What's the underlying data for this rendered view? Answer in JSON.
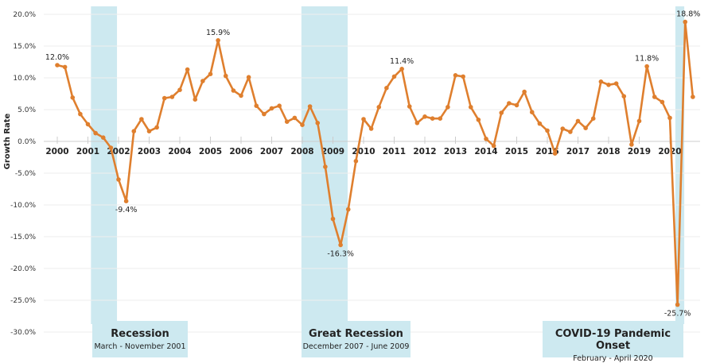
{
  "chart_data": {
    "type": "line",
    "title": "",
    "xlabel": "",
    "ylabel": "Growth Rate",
    "ylim": [
      -30,
      20
    ],
    "y_ticks": [
      "20.0%",
      "15.0%",
      "10.0%",
      "5.0%",
      "0.0%",
      "-5.0%",
      "-10.0%",
      "-15.0%",
      "-20.0%",
      "-25.0%",
      "-30.0%"
    ],
    "y_tick_values": [
      20,
      15,
      10,
      5,
      0,
      -5,
      -10,
      -15,
      -20,
      -25,
      -30
    ],
    "x_ticks": [
      "2000",
      "2001",
      "2002",
      "2003",
      "2004",
      "2005",
      "2006",
      "2007",
      "2008",
      "2009",
      "2010",
      "2011",
      "2012",
      "2013",
      "2014",
      "2015",
      "2016",
      "2017",
      "2018",
      "2019",
      "2020"
    ],
    "x_start_year": 2000,
    "frequency": "quarterly",
    "grid": true,
    "line_color": "#df7f2e",
    "shade_color": "#cde9f0",
    "values": [
      12.0,
      11.7,
      6.9,
      4.3,
      2.7,
      1.3,
      0.6,
      -1.0,
      -6.0,
      -9.4,
      1.6,
      3.5,
      1.6,
      2.2,
      6.8,
      7.0,
      8.1,
      11.3,
      6.6,
      9.5,
      10.6,
      15.9,
      10.3,
      8.0,
      7.2,
      10.1,
      5.6,
      4.3,
      5.2,
      5.6,
      3.1,
      3.7,
      2.6,
      5.5,
      2.9,
      -4.0,
      -12.2,
      -16.3,
      -10.7,
      -3.1,
      3.5,
      2.0,
      5.4,
      8.4,
      10.2,
      11.4,
      5.5,
      2.9,
      3.9,
      3.6,
      3.6,
      5.4,
      10.4,
      10.2,
      5.4,
      3.4,
      0.4,
      -0.7,
      4.5,
      6.0,
      5.7,
      7.8,
      4.6,
      2.8,
      1.7,
      -1.9,
      2.0,
      1.5,
      3.2,
      2.1,
      3.6,
      9.4,
      8.9,
      9.1,
      7.1,
      -0.5,
      3.2,
      11.8,
      7.0,
      6.2,
      3.7,
      -25.7,
      18.8,
      7.0
    ],
    "annotations": [
      {
        "index": 0,
        "text": "12.0%",
        "pos": "above"
      },
      {
        "index": 9,
        "text": "-9.4%",
        "pos": "below"
      },
      {
        "index": 21,
        "text": "15.9%",
        "pos": "above"
      },
      {
        "index": 37,
        "text": "-16.3%",
        "pos": "below"
      },
      {
        "index": 45,
        "text": "11.4%",
        "pos": "above"
      },
      {
        "index": 77,
        "text": "11.8%",
        "pos": "above"
      },
      {
        "index": 81,
        "text": "-25.7%",
        "pos": "below"
      },
      {
        "index": 82,
        "text": "18.8%",
        "pos": "above"
      }
    ],
    "recessions": [
      {
        "title": "Recession",
        "subtitle": "March - November 2001",
        "start": 2001.1,
        "end": 2001.95
      },
      {
        "title": "Great Recession",
        "subtitle": "December 2007 - June 2009",
        "start": 2007.97,
        "end": 2009.48
      },
      {
        "title": "COVID-19 Pandemic Onset",
        "subtitle": "February - April 2020",
        "start": 2020.18,
        "end": 2020.47
      }
    ]
  }
}
